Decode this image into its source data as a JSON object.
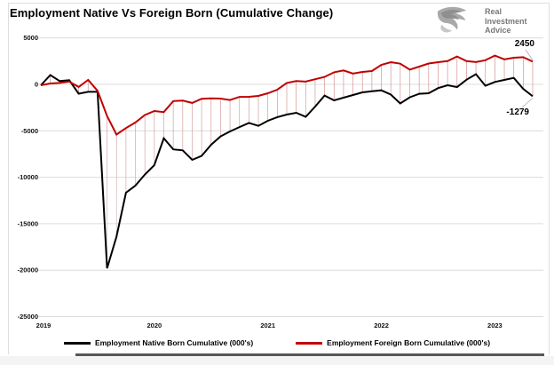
{
  "header": {
    "title": "Employment Native Vs Foreign Born (Cumulative Change)"
  },
  "logo": {
    "icon": "eagle-icon",
    "line1": "Real",
    "line2": "Investment",
    "line3": "Advice"
  },
  "legend": {
    "native_label": "Employment Native Born Cumulative (000's)",
    "foreign_label": "Employment Foreign Born Cumulative (000's)"
  },
  "colors": {
    "native": "#000000",
    "foreign": "#c00000",
    "gridline": "#dcdcdc",
    "drop_line_top": "#d98c8c",
    "drop_line_bottom": "#c8c8c8",
    "leader": "#ababab",
    "logo_gray": "#8f8f8f"
  },
  "chart_data": {
    "type": "line",
    "title": "Employment Native Vs Foreign Born (Cumulative Change)",
    "xlabel": "",
    "ylabel": "",
    "ylim": [
      -25000,
      5000
    ],
    "yticks": [
      5000,
      0,
      -5000,
      -10000,
      -15000,
      -20000,
      -25000
    ],
    "xticks": [
      "2019",
      "2020",
      "2021",
      "2022",
      "2023"
    ],
    "grid": "horizontal",
    "high_low_lines": true,
    "legend_position": "bottom",
    "x": [
      "Jan 2019",
      "Feb 2019",
      "Mar 2019",
      "Apr 2019",
      "May 2019",
      "Jun 2019",
      "Jul 2019",
      "Aug 2019",
      "Sep 2019",
      "Oct 2019",
      "Nov 2019",
      "Dec 2019",
      "Jan 2020",
      "Feb 2020",
      "Mar 2020",
      "Apr 2020",
      "May 2020",
      "Jun 2020",
      "Jul 2020",
      "Aug 2020",
      "Sep 2020",
      "Oct 2020",
      "Nov 2020",
      "Dec 2020",
      "Jan 2021",
      "Feb 2021",
      "Mar 2021",
      "Apr 2021",
      "May 2021",
      "Jun 2021",
      "Jul 2021",
      "Aug 2021",
      "Sep 2021",
      "Oct 2021",
      "Nov 2021",
      "Dec 2021",
      "Jan 2022",
      "Feb 2022",
      "Mar 2022",
      "Apr 2022",
      "May 2022",
      "Jun 2022",
      "Jul 2022",
      "Aug 2022",
      "Sep 2022",
      "Oct 2022",
      "Nov 2022",
      "Dec 2022",
      "Jan 2023",
      "Feb 2023",
      "Mar 2023",
      "Apr 2023",
      "May 2023"
    ],
    "series": [
      {
        "name": "Employment Native Born Cumulative (000's)",
        "color": "#000000",
        "values": [
          -100,
          1000,
          350,
          450,
          -1000,
          -800,
          -800,
          -19800,
          -16400,
          -11660,
          -10900,
          -9700,
          -8700,
          -5800,
          -7000,
          -7100,
          -8130,
          -7700,
          -6500,
          -5600,
          -5070,
          -4600,
          -4150,
          -4460,
          -3920,
          -3530,
          -3250,
          -3060,
          -3500,
          -2390,
          -1200,
          -1720,
          -1430,
          -1150,
          -860,
          -740,
          -640,
          -1100,
          -2060,
          -1400,
          -1010,
          -960,
          -400,
          -100,
          -290,
          500,
          1100,
          -150,
          260,
          480,
          700,
          -480,
          -1279
        ]
      },
      {
        "name": "Employment Foreign Born Cumulative (000's)",
        "color": "#c00000",
        "values": [
          -100,
          100,
          150,
          300,
          -280,
          480,
          -700,
          -3400,
          -5400,
          -4700,
          -4100,
          -3300,
          -2870,
          -2980,
          -1800,
          -1750,
          -2000,
          -1550,
          -1500,
          -1530,
          -1680,
          -1350,
          -1340,
          -1240,
          -960,
          -570,
          150,
          350,
          300,
          550,
          800,
          1300,
          1500,
          1170,
          1340,
          1430,
          2100,
          2390,
          2230,
          1590,
          1910,
          2250,
          2390,
          2500,
          3000,
          2500,
          2400,
          2600,
          3100,
          2700,
          2870,
          2930,
          2450
        ]
      }
    ],
    "end_labels": {
      "foreign": "2450",
      "native": "-1279"
    }
  }
}
